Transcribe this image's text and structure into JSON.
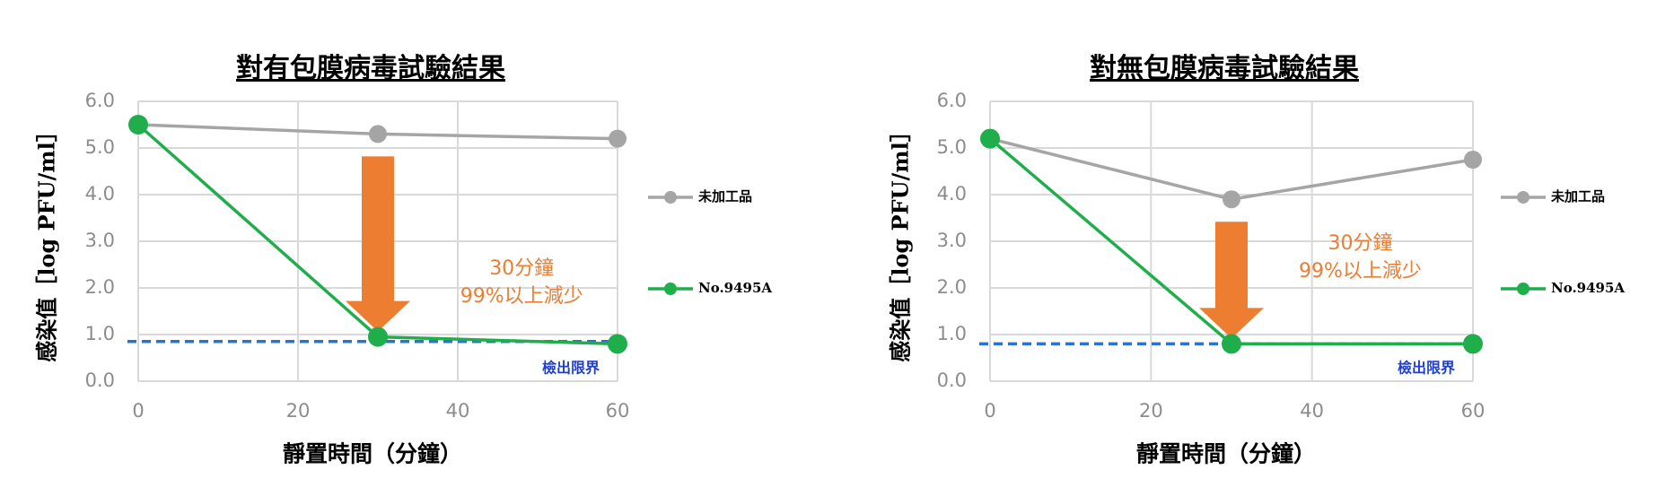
{
  "chart_data": [
    {
      "type": "line",
      "title": "對有包膜病毒試驗結果",
      "y_label": "感染值［log PFU/ml］",
      "x_label": "靜置時間（分鐘）",
      "x": [
        0,
        30,
        60
      ],
      "series": [
        {
          "name": "未加工品",
          "color": "#a5a5a5",
          "values": [
            5.5,
            5.3,
            5.2
          ]
        },
        {
          "name": "No.9495A",
          "color": "#1fae4b",
          "values": [
            5.5,
            0.95,
            0.8
          ]
        }
      ],
      "xlim": [
        0,
        60
      ],
      "xticks": [
        0,
        20,
        40,
        60
      ],
      "ylim": [
        0,
        6
      ],
      "yticks": [
        {
          "value": 0,
          "label": "0.0"
        },
        {
          "value": 1,
          "label": "1.0"
        },
        {
          "value": 2,
          "label": "2.0"
        },
        {
          "value": 3,
          "label": "3.0"
        },
        {
          "value": 4,
          "label": "4.0"
        },
        {
          "value": 5,
          "label": "5.0"
        },
        {
          "value": 6,
          "label": "6.0"
        }
      ],
      "grid": true,
      "limit_line": 0.85,
      "limit_label": "檢出限界",
      "limit_color": "#2a74c9",
      "annotation": [
        "30分鐘",
        "99%以上減少"
      ],
      "annotation_color": "#ed7d31"
    },
    {
      "type": "line",
      "title": "對無包膜病毒試驗結果",
      "y_label": "感染值［log PFU/ml］",
      "x_label": "靜置時間（分鐘）",
      "x": [
        0,
        30,
        60
      ],
      "series": [
        {
          "name": "未加工品",
          "color": "#a5a5a5",
          "values": [
            5.2,
            3.9,
            4.75
          ]
        },
        {
          "name": "No.9495A",
          "color": "#1fae4b",
          "values": [
            5.2,
            0.8,
            0.8
          ]
        }
      ],
      "xlim": [
        0,
        60
      ],
      "xticks": [
        0,
        20,
        40,
        60
      ],
      "ylim": [
        0,
        6
      ],
      "yticks": [
        {
          "value": 0,
          "label": "0.0"
        },
        {
          "value": 1,
          "label": "1.0"
        },
        {
          "value": 2,
          "label": "2.0"
        },
        {
          "value": 3,
          "label": "3.0"
        },
        {
          "value": 4,
          "label": "4.0"
        },
        {
          "value": 5,
          "label": "5.0"
        },
        {
          "value": 6,
          "label": "6.0"
        }
      ],
      "grid": true,
      "limit_line": 0.8,
      "limit_label": "檢出限界",
      "limit_color": "#2a74c9",
      "annotation": [
        "30分鐘",
        "99%以上減少"
      ],
      "annotation_color": "#ed7d31"
    }
  ]
}
